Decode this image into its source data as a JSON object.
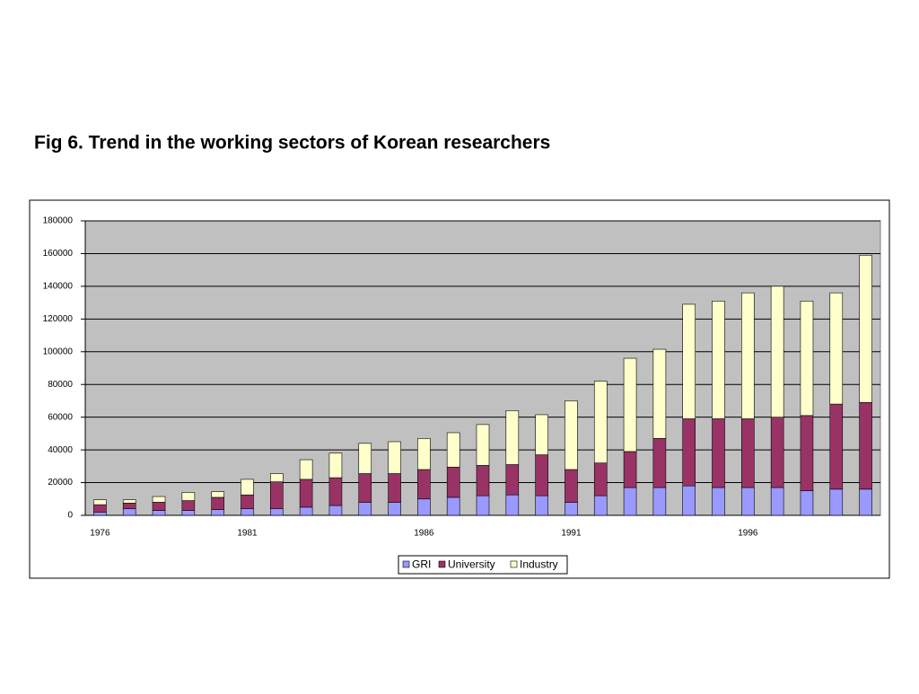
{
  "chart_data": {
    "type": "stacked_bar",
    "title": "Fig 6. Trend in the working sectors of Korean researchers",
    "categories": [
      "1976",
      null,
      null,
      null,
      null,
      "1981",
      null,
      null,
      null,
      null,
      null,
      "1986",
      null,
      null,
      null,
      null,
      "1991",
      null,
      null,
      null,
      null,
      null,
      "1996",
      null,
      null,
      null,
      null
    ],
    "series": [
      {
        "name": "GRI",
        "color": "#9999ff",
        "values": [
          2000,
          4000,
          3000,
          3000,
          3500,
          4000,
          4000,
          5000,
          6000,
          8000,
          8000,
          10000,
          11000,
          12000,
          12500,
          12000,
          8000,
          12000,
          17000,
          17000,
          18000,
          17000,
          17000,
          17000,
          15000,
          16000,
          16000
        ]
      },
      {
        "name": "University",
        "color": "#993366",
        "values": [
          4500,
          3500,
          5000,
          6000,
          7500,
          8500,
          16500,
          17000,
          17000,
          17500,
          17500,
          18000,
          18500,
          18500,
          18500,
          25000,
          20000,
          20000,
          22000,
          30000,
          41000,
          42000,
          42000,
          43000,
          46000,
          52000,
          53000
        ]
      },
      {
        "name": "Industry",
        "color": "#ffffcc",
        "values": [
          3000,
          2000,
          3500,
          5000,
          3500,
          9500,
          5000,
          12000,
          15000,
          18500,
          19500,
          19000,
          21000,
          25000,
          33000,
          24500,
          42000,
          50000,
          57000,
          54500,
          70000,
          72000,
          77000,
          80000,
          70000,
          68000,
          90000
        ]
      }
    ],
    "ylim": [
      0,
      180000
    ],
    "yticks": [
      0,
      20000,
      40000,
      60000,
      80000,
      100000,
      120000,
      140000,
      160000,
      180000
    ],
    "grid": true,
    "legend": "bottom"
  }
}
